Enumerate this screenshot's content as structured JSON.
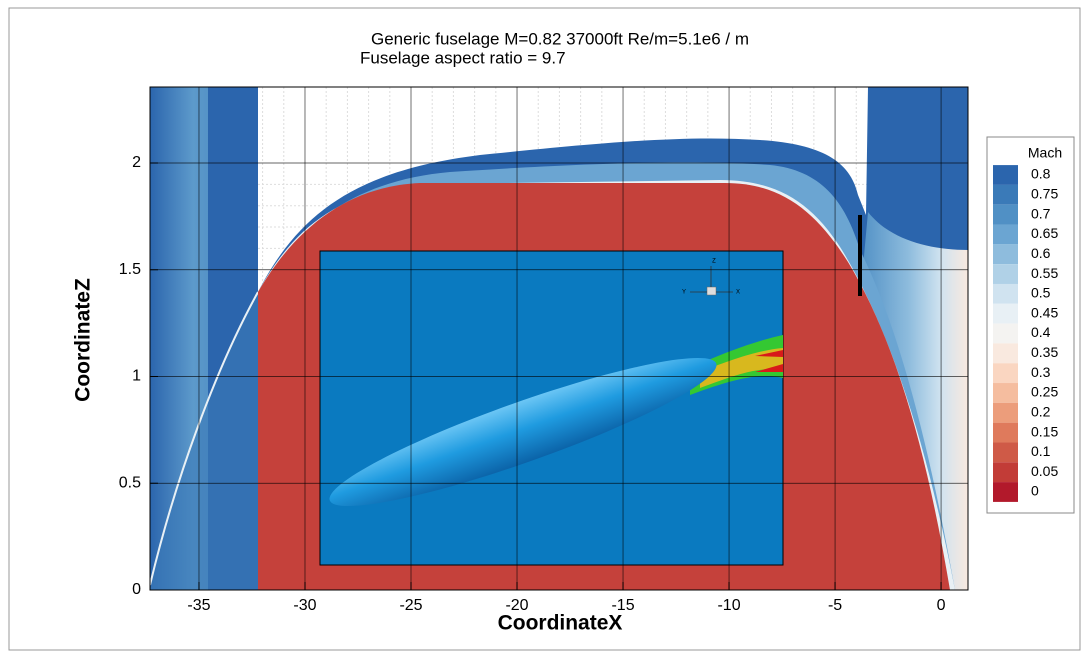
{
  "chart_data": {
    "type": "contour",
    "title": "Generic fuselage M=0.82   37000ft    Re/m=5.1e6 / m",
    "subtitle": "Fuselage aspect ratio = 9.7",
    "x_label": "CoordinateX",
    "y_label": "CoordinateZ",
    "xlim": [
      -37.31,
      1.27
    ],
    "ylim": [
      0,
      2.356
    ],
    "xticks": [
      -35,
      -30,
      -25,
      -20,
      -15,
      -10,
      -5,
      0
    ],
    "yticks": [
      0,
      0.5,
      1,
      1.5,
      2
    ],
    "grid": true,
    "legend_position": "right",
    "legend": {
      "title": "Mach",
      "levels": [
        0.8,
        0.75,
        0.7,
        0.65,
        0.6,
        0.55,
        0.5,
        0.45,
        0.4,
        0.35,
        0.3,
        0.25,
        0.2,
        0.15,
        0.1,
        0.05,
        0
      ],
      "colors": [
        "#2b65ad",
        "#3a7ab8",
        "#5090c5",
        "#6ba5d2",
        "#8ebcdd",
        "#b0d1e7",
        "#d0e3f0",
        "#e8f0f5",
        "#f4f3f1",
        "#f9e9df",
        "#fad6c1",
        "#f5bd9f",
        "#ec9d7b",
        "#df7a5c",
        "#cf5a47",
        "#c23c37",
        "#b2192b"
      ]
    },
    "inset_axes": [
      "Z",
      "Y",
      "X"
    ]
  }
}
